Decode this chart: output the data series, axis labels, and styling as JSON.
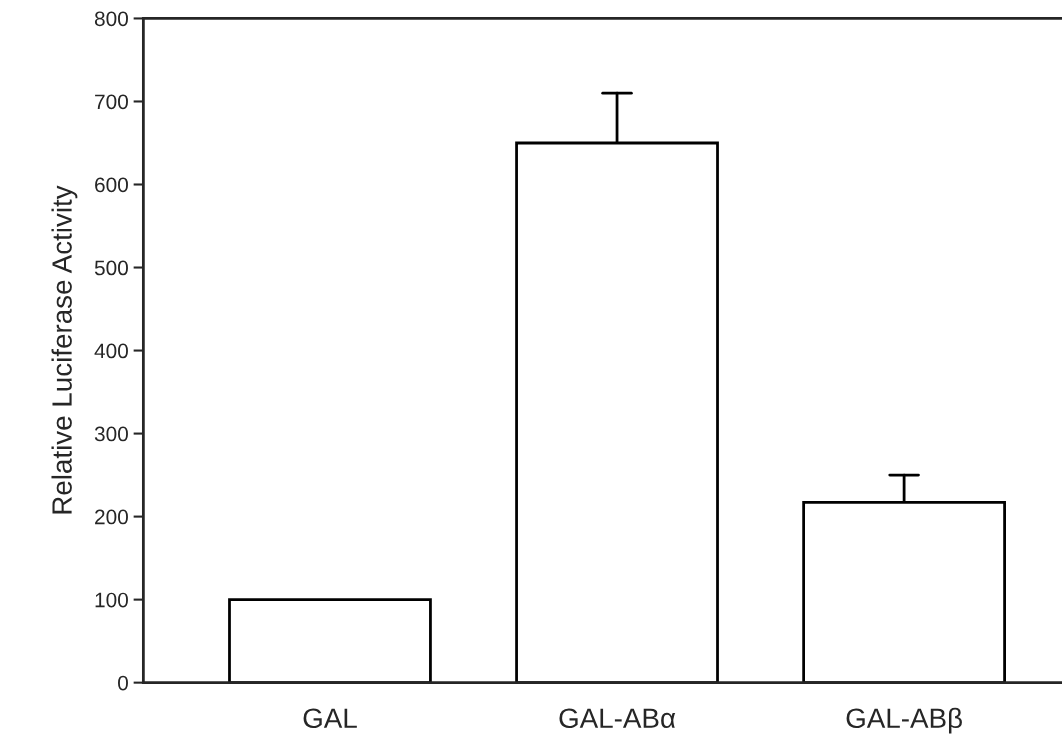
{
  "chart_data": {
    "type": "bar",
    "ylabel": "Relative Luciferase Activity",
    "categories": [
      "GAL",
      "GAL-ABα",
      "GAL-ABβ"
    ],
    "values": [
      100,
      650,
      217
    ],
    "errors": [
      null,
      [
        650,
        710
      ],
      [
        217,
        250
      ]
    ],
    "color": "#ffffff",
    "ylim": [
      0,
      800
    ],
    "yticks": [
      0,
      100,
      200,
      300,
      400,
      500,
      600,
      700,
      800
    ],
    "grid": false
  }
}
